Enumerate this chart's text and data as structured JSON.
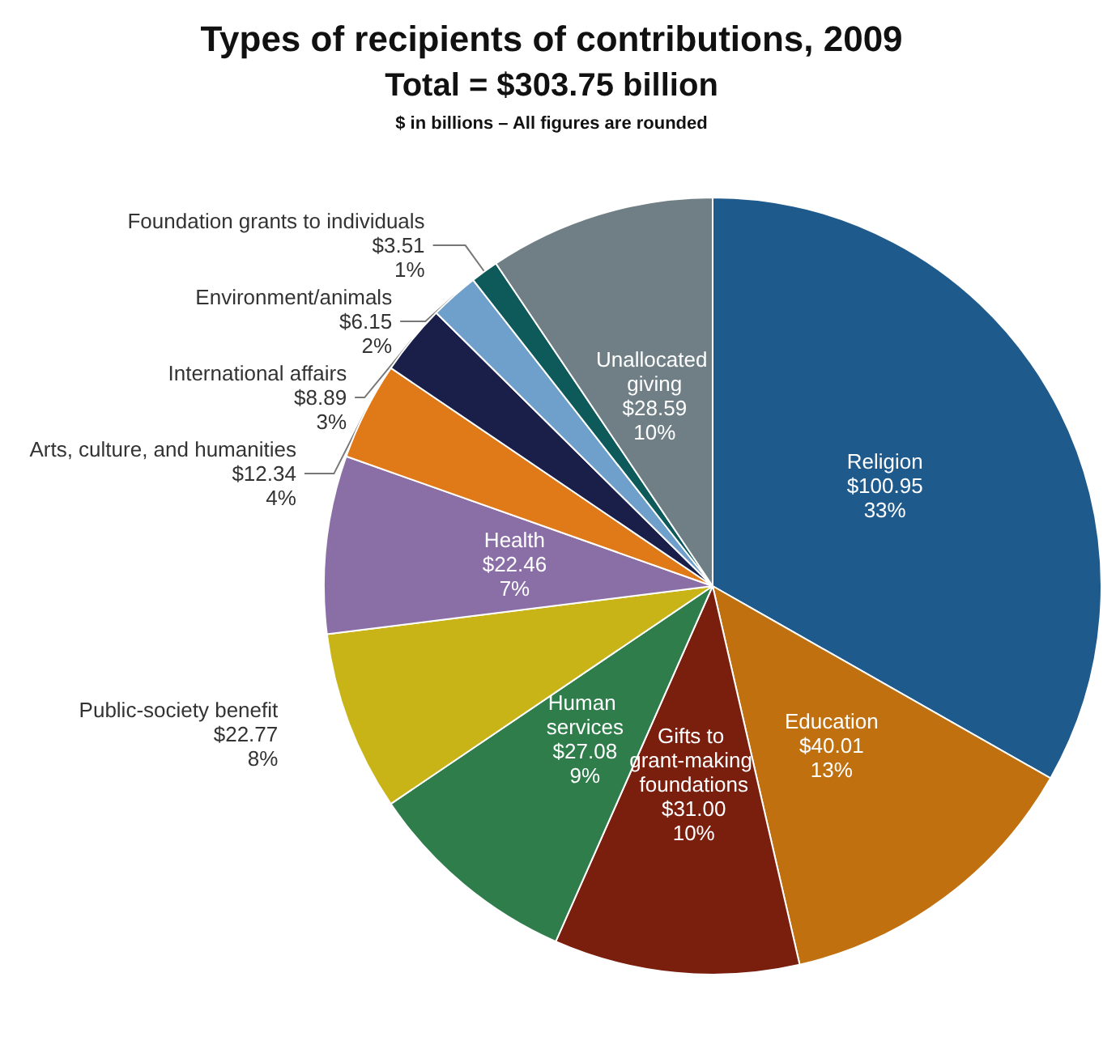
{
  "chart_data": {
    "type": "pie",
    "title": "Types of recipients of contributions, 2009",
    "subtitle": "Total = $303.75 billion",
    "annotations": [
      "$ in billions – All figures are rounded"
    ],
    "categories": [
      "Religion",
      "Education",
      "Gifts to grant-making foundations",
      "Human services",
      "Public-society benefit",
      "Health",
      "Arts, culture, and humanities",
      "International affairs",
      "Environment/animals",
      "Foundation grants to individuals",
      "Unallocated giving"
    ],
    "values": [
      100.95,
      40.01,
      31.0,
      27.08,
      22.77,
      22.46,
      12.34,
      8.89,
      6.15,
      3.51,
      28.59
    ],
    "value_labels": [
      "$100.95\n33%",
      "$40.01\n13%",
      "$31.00\n10%",
      "$27.08\n9%",
      "$22.77\n8%",
      "$22.46\n7%",
      "$12.34\n4%",
      "$8.89\n3%",
      "$6.15\n2%",
      "$3.51\n1%",
      "$28.59\n10%"
    ],
    "colors": [
      "#1f5a8c",
      "#c0700f",
      "#7a1e0e",
      "#2e7d4a",
      "#c9b418",
      "#8a6fa6",
      "#e07a18",
      "#1a1f4a",
      "#6fa0cc",
      "#0e5a5a",
      "#6f7f85"
    ],
    "legend": false
  }
}
